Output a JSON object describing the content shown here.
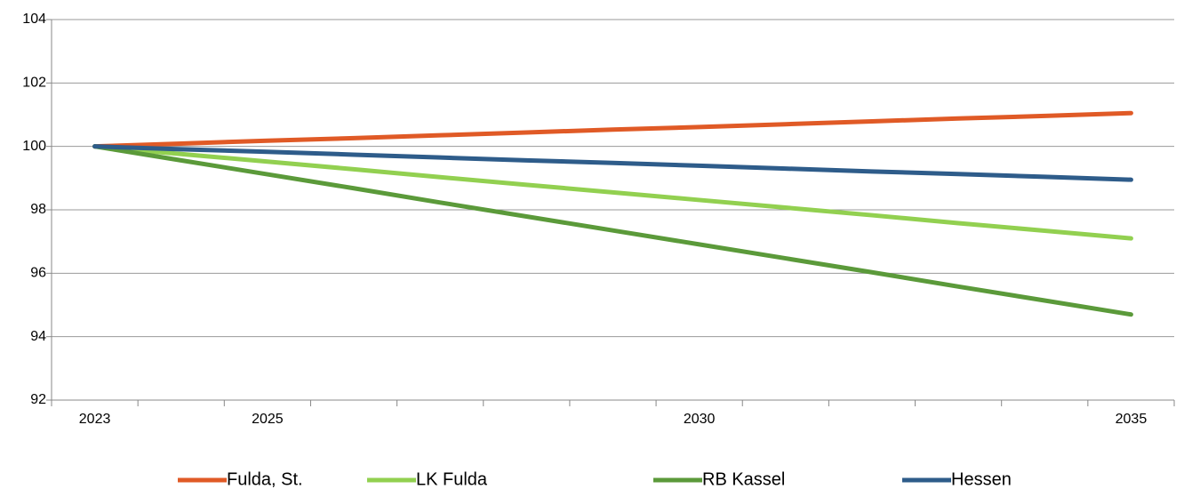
{
  "chart_data": {
    "type": "line",
    "categories": [
      "2023",
      null,
      "2025",
      null,
      null,
      null,
      null,
      "2030",
      null,
      null,
      null,
      null,
      "2035"
    ],
    "series": [
      {
        "name": "Fulda, St.",
        "color": "#e05a26",
        "values": [
          100,
          100.09,
          100.18,
          100.26,
          100.35,
          100.44,
          100.53,
          100.61,
          100.7,
          100.79,
          100.88,
          100.96,
          101.05
        ]
      },
      {
        "name": "LK Fulda",
        "color": "#92d050",
        "values": [
          100,
          99.76,
          99.52,
          99.28,
          99.03,
          98.79,
          98.55,
          98.31,
          98.07,
          97.83,
          97.58,
          97.34,
          97.1
        ]
      },
      {
        "name": "RB Kassel",
        "color": "#5b9a3a",
        "values": [
          100,
          99.56,
          99.12,
          98.68,
          98.23,
          97.79,
          97.35,
          96.91,
          96.47,
          96.03,
          95.58,
          95.14,
          94.7
        ]
      },
      {
        "name": "Hessen",
        "color": "#2e5c8a",
        "values": [
          100,
          99.91,
          99.83,
          99.74,
          99.65,
          99.56,
          99.48,
          99.39,
          99.3,
          99.21,
          99.13,
          99.04,
          98.95
        ]
      }
    ],
    "ylim": [
      92,
      104
    ],
    "yticks": [
      92,
      94,
      96,
      98,
      100,
      102,
      104
    ],
    "grid": true,
    "legend": "bottom"
  }
}
